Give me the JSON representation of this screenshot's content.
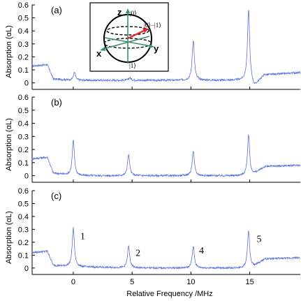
{
  "figure": {
    "xlabel": "Relative Frequency /MHz",
    "ylabel": "Absorption (αL)"
  },
  "chart_data": [
    {
      "type": "line",
      "panel_label": "(a)",
      "xlim": [
        -3.5,
        19.3
      ],
      "ylim": [
        -0.05,
        0.6
      ],
      "xticks": [
        0,
        5,
        10,
        15
      ],
      "xtick_labels": [],
      "yticks": [
        0,
        0.1,
        0.2,
        0.3,
        0.4,
        0.5,
        0.6
      ],
      "ytick_labels": [
        "0",
        "0.1",
        "0.2",
        "0.3",
        "0.4",
        "0.5",
        "0.6"
      ],
      "color": "#5b74d8",
      "baseline": [
        [
          -3.5,
          0.13
        ],
        [
          -2.2,
          0.14
        ],
        [
          -1.7,
          0.03
        ],
        [
          0,
          0.02
        ],
        [
          5,
          0.02
        ],
        [
          10,
          0.02
        ],
        [
          15,
          0.02
        ],
        [
          15.4,
          -0.03
        ],
        [
          16.2,
          0.06
        ],
        [
          19.3,
          0.08
        ]
      ],
      "peaks": [
        {
          "x": 0.1,
          "y": 0.08
        },
        {
          "x": 4.8,
          "y": 0.04
        },
        {
          "x": 10.2,
          "y": 0.33
        },
        {
          "x": 14.9,
          "y": 0.56
        }
      ]
    },
    {
      "type": "line",
      "panel_label": "(b)",
      "xlim": [
        -3.5,
        19.3
      ],
      "ylim": [
        -0.05,
        0.6
      ],
      "xticks": [
        0,
        5,
        10,
        15
      ],
      "xtick_labels": [],
      "yticks": [
        0,
        0.1,
        0.2,
        0.3,
        0.4,
        0.5,
        0.6
      ],
      "ytick_labels": [
        "0",
        "0.1",
        "0.2",
        "0.3",
        "0.4",
        "0.5",
        "0.6"
      ],
      "color": "#5b74d8",
      "baseline": [
        [
          -3.5,
          0.13
        ],
        [
          -2.2,
          0.14
        ],
        [
          -1.7,
          0.02
        ],
        [
          0,
          0.0
        ],
        [
          5,
          0.0
        ],
        [
          10,
          0.0
        ],
        [
          15,
          0.0
        ],
        [
          15.5,
          0.02
        ],
        [
          16.3,
          0.07
        ],
        [
          19.3,
          0.08
        ]
      ],
      "peaks": [
        {
          "x": 0.0,
          "y": 0.27
        },
        {
          "x": 4.7,
          "y": 0.16
        },
        {
          "x": 10.2,
          "y": 0.19
        },
        {
          "x": 14.9,
          "y": 0.31
        }
      ]
    },
    {
      "type": "line",
      "panel_label": "(c)",
      "xlim": [
        -3.5,
        19.3
      ],
      "ylim": [
        -0.05,
        0.6
      ],
      "xticks": [
        0,
        5,
        10,
        15
      ],
      "xtick_labels": [
        "0",
        "5",
        "10",
        "15"
      ],
      "yticks": [
        0,
        0.1,
        0.2,
        0.3,
        0.4,
        0.5,
        0.6
      ],
      "ytick_labels": [
        "0",
        "0.1",
        "0.2",
        "0.3",
        "0.4",
        "0.5",
        "0.6"
      ],
      "color": "#5b74d8",
      "baseline": [
        [
          -3.5,
          0.12
        ],
        [
          -2.2,
          0.13
        ],
        [
          -1.7,
          0.02
        ],
        [
          0,
          0.01
        ],
        [
          5,
          0.0
        ],
        [
          10,
          0.0
        ],
        [
          15,
          0.0
        ],
        [
          15.5,
          0.02
        ],
        [
          16.3,
          0.07
        ],
        [
          19.3,
          0.08
        ]
      ],
      "peaks": [
        {
          "x": 0.0,
          "y": 0.31
        },
        {
          "x": 4.7,
          "y": 0.17
        },
        {
          "x": 10.2,
          "y": 0.17
        },
        {
          "x": 14.9,
          "y": 0.29
        }
      ],
      "peak_labels": [
        {
          "text": "1",
          "x": 0.8,
          "y": 0.25
        },
        {
          "text": "2",
          "x": 5.5,
          "y": 0.12
        },
        {
          "text": "4",
          "x": 10.9,
          "y": 0.14
        },
        {
          "text": "5",
          "x": 15.8,
          "y": 0.23
        }
      ]
    }
  ],
  "inset": {
    "axis_z": "z",
    "axis_x": "x",
    "axis_y": "y",
    "ket_top": "|0⟩",
    "ket_bottom": "|1⟩",
    "ket_state": "|0⟩−|1⟩",
    "arrow_color": "#e8202a",
    "axis_color": "#3b8c6e"
  }
}
